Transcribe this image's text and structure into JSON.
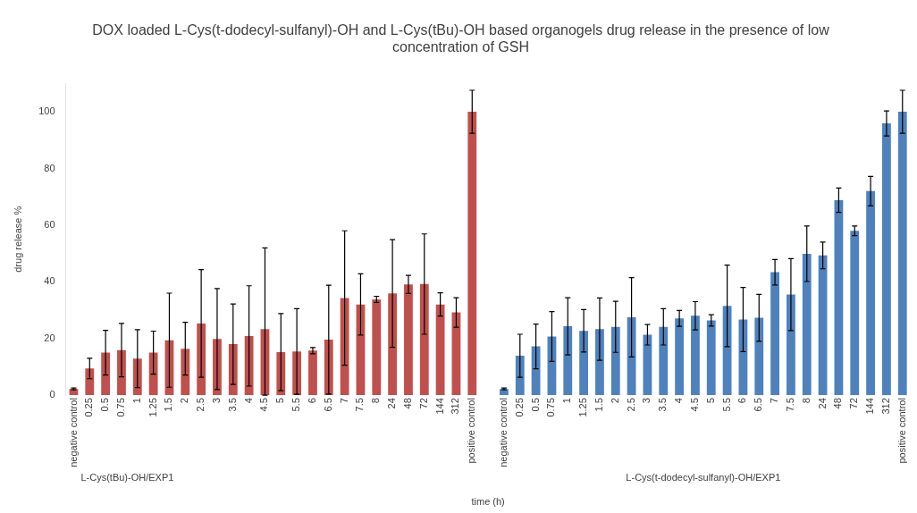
{
  "chart_data": {
    "type": "bar",
    "title": "DOX loaded L-Cys(t-dodecyl-sulfanyl)-OH and L-Cys(tBu)-OH based organogels drug release in the presence of low concentration of GSH",
    "xlabel": "time (h)",
    "ylabel": "drug release %",
    "categories": [
      "negative control",
      "0.25",
      "0.5",
      "0.75",
      "1",
      "1.25",
      "1.5",
      "2",
      "2.5",
      "3",
      "3.5",
      "4",
      "4.5",
      "5",
      "5.5",
      "6",
      "6.5",
      "7",
      "7.5",
      "8",
      "24",
      "48",
      "72",
      "144",
      "312",
      "positive control",
      null,
      "negative control",
      "0.25",
      "0.5",
      "0.75",
      "1",
      "1.25",
      "1.5",
      "2",
      "2.5",
      "3",
      "3.5",
      "4",
      "4.5",
      "5",
      "5.5",
      "6",
      "6.5",
      "7",
      "7.5",
      "8",
      "24",
      "48",
      "72",
      "144",
      "312",
      "positive control"
    ],
    "series": [
      {
        "color": "#c0504d",
        "values": [
          2.2,
          9.4,
          15.0,
          15.9,
          12.9,
          15.0,
          19.4,
          16.4,
          25.3,
          19.8,
          18.0,
          20.9,
          23.3,
          15.2,
          15.4,
          15.7,
          19.6,
          34.3,
          32.0,
          33.8,
          35.9,
          39.1,
          39.2,
          32.0,
          29.2,
          100,
          null,
          null,
          null,
          null,
          null,
          null,
          null,
          null,
          null,
          null,
          null,
          null,
          null,
          null,
          null,
          null,
          null,
          null,
          null,
          null,
          null,
          null,
          null,
          null,
          null,
          null,
          null
        ],
        "errors": [
          0.3,
          3.6,
          7.9,
          9.4,
          10.2,
          7.6,
          16.6,
          9.3,
          19,
          17.8,
          14.2,
          17.7,
          [
            0,
            52
          ],
          13.6,
          15.1,
          1.1,
          19.2,
          23.7,
          10.8,
          1.1,
          19,
          3.2,
          17.7,
          4.1,
          5.2,
          7.6,
          null,
          null,
          null,
          null,
          null,
          null,
          null,
          null,
          null,
          null,
          null,
          null,
          null,
          null,
          null,
          null,
          null,
          null,
          null,
          null,
          null,
          null,
          null,
          null,
          null,
          null,
          null
        ]
      },
      {
        "color": "#4f81bd",
        "values": [
          null,
          null,
          null,
          null,
          null,
          null,
          null,
          null,
          null,
          null,
          null,
          null,
          null,
          null,
          null,
          null,
          null,
          null,
          null,
          null,
          null,
          null,
          null,
          null,
          null,
          null,
          null,
          2.2,
          13.9,
          17.2,
          20.7,
          24.3,
          22.7,
          23.3,
          24.1,
          27.5,
          21.3,
          24.1,
          27.1,
          28.0,
          26.4,
          31.5,
          26.7,
          27.3,
          43.4,
          35.5,
          49.9,
          49.3,
          68.8,
          58.0,
          72.0,
          95.9,
          100
        ],
        "errors": [
          null,
          null,
          null,
          null,
          null,
          null,
          null,
          null,
          null,
          null,
          null,
          null,
          null,
          null,
          null,
          null,
          null,
          null,
          null,
          null,
          null,
          null,
          null,
          null,
          null,
          null,
          null,
          0.3,
          7.6,
          7.9,
          8.8,
          10.1,
          7.5,
          11,
          9,
          14,
          3.6,
          6.4,
          2.8,
          5,
          2,
          14.4,
          11.3,
          8.3,
          4.5,
          12.7,
          9.8,
          4.7,
          4.3,
          1.7,
          5.2,
          4.4,
          7.6
        ]
      }
    ],
    "ylim": [
      0,
      110
    ],
    "yticks": [
      0,
      20,
      40,
      60,
      80,
      100
    ],
    "grid": false,
    "legend": false,
    "annotations": [
      "L-Cys(tBu)-OH/EXP1",
      "L-Cys(t-dodecyl-sulfanyl)-OH/EXP1"
    ]
  }
}
